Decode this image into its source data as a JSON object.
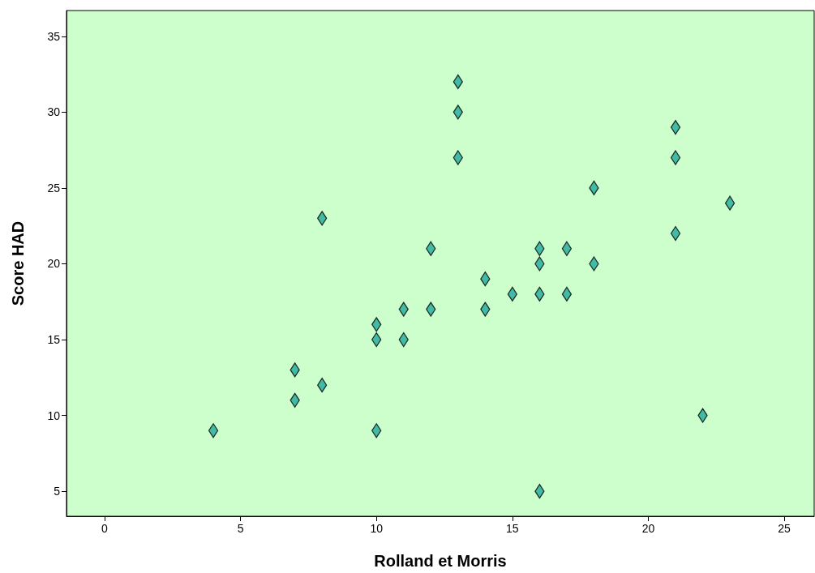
{
  "chart_data": {
    "type": "scatter",
    "xlabel": "Rolland et Morris",
    "ylabel": "Score HAD",
    "x": [
      4,
      7,
      7,
      8,
      8,
      10,
      10,
      10,
      11,
      11,
      12,
      12,
      13,
      13,
      13,
      14,
      14,
      15,
      16,
      16,
      16,
      16,
      17,
      17,
      18,
      18,
      21,
      21,
      21,
      22,
      23
    ],
    "values": [
      9,
      13,
      11,
      23,
      12,
      16,
      15,
      9,
      17,
      15,
      21,
      17,
      32,
      30,
      27,
      19,
      17,
      18,
      21,
      20,
      18,
      5,
      21,
      18,
      25,
      20,
      29,
      27,
      22,
      10,
      24
    ],
    "color": "#1fa99b",
    "marker": "diamond",
    "grid": false,
    "xlim": [
      -1.4,
      26.1
    ],
    "xticks": [
      0,
      5,
      10,
      15,
      20,
      25
    ],
    "ylim": [
      3.35,
      36.7
    ],
    "yticks": [
      5,
      10,
      15,
      20,
      25,
      30,
      35
    ]
  }
}
